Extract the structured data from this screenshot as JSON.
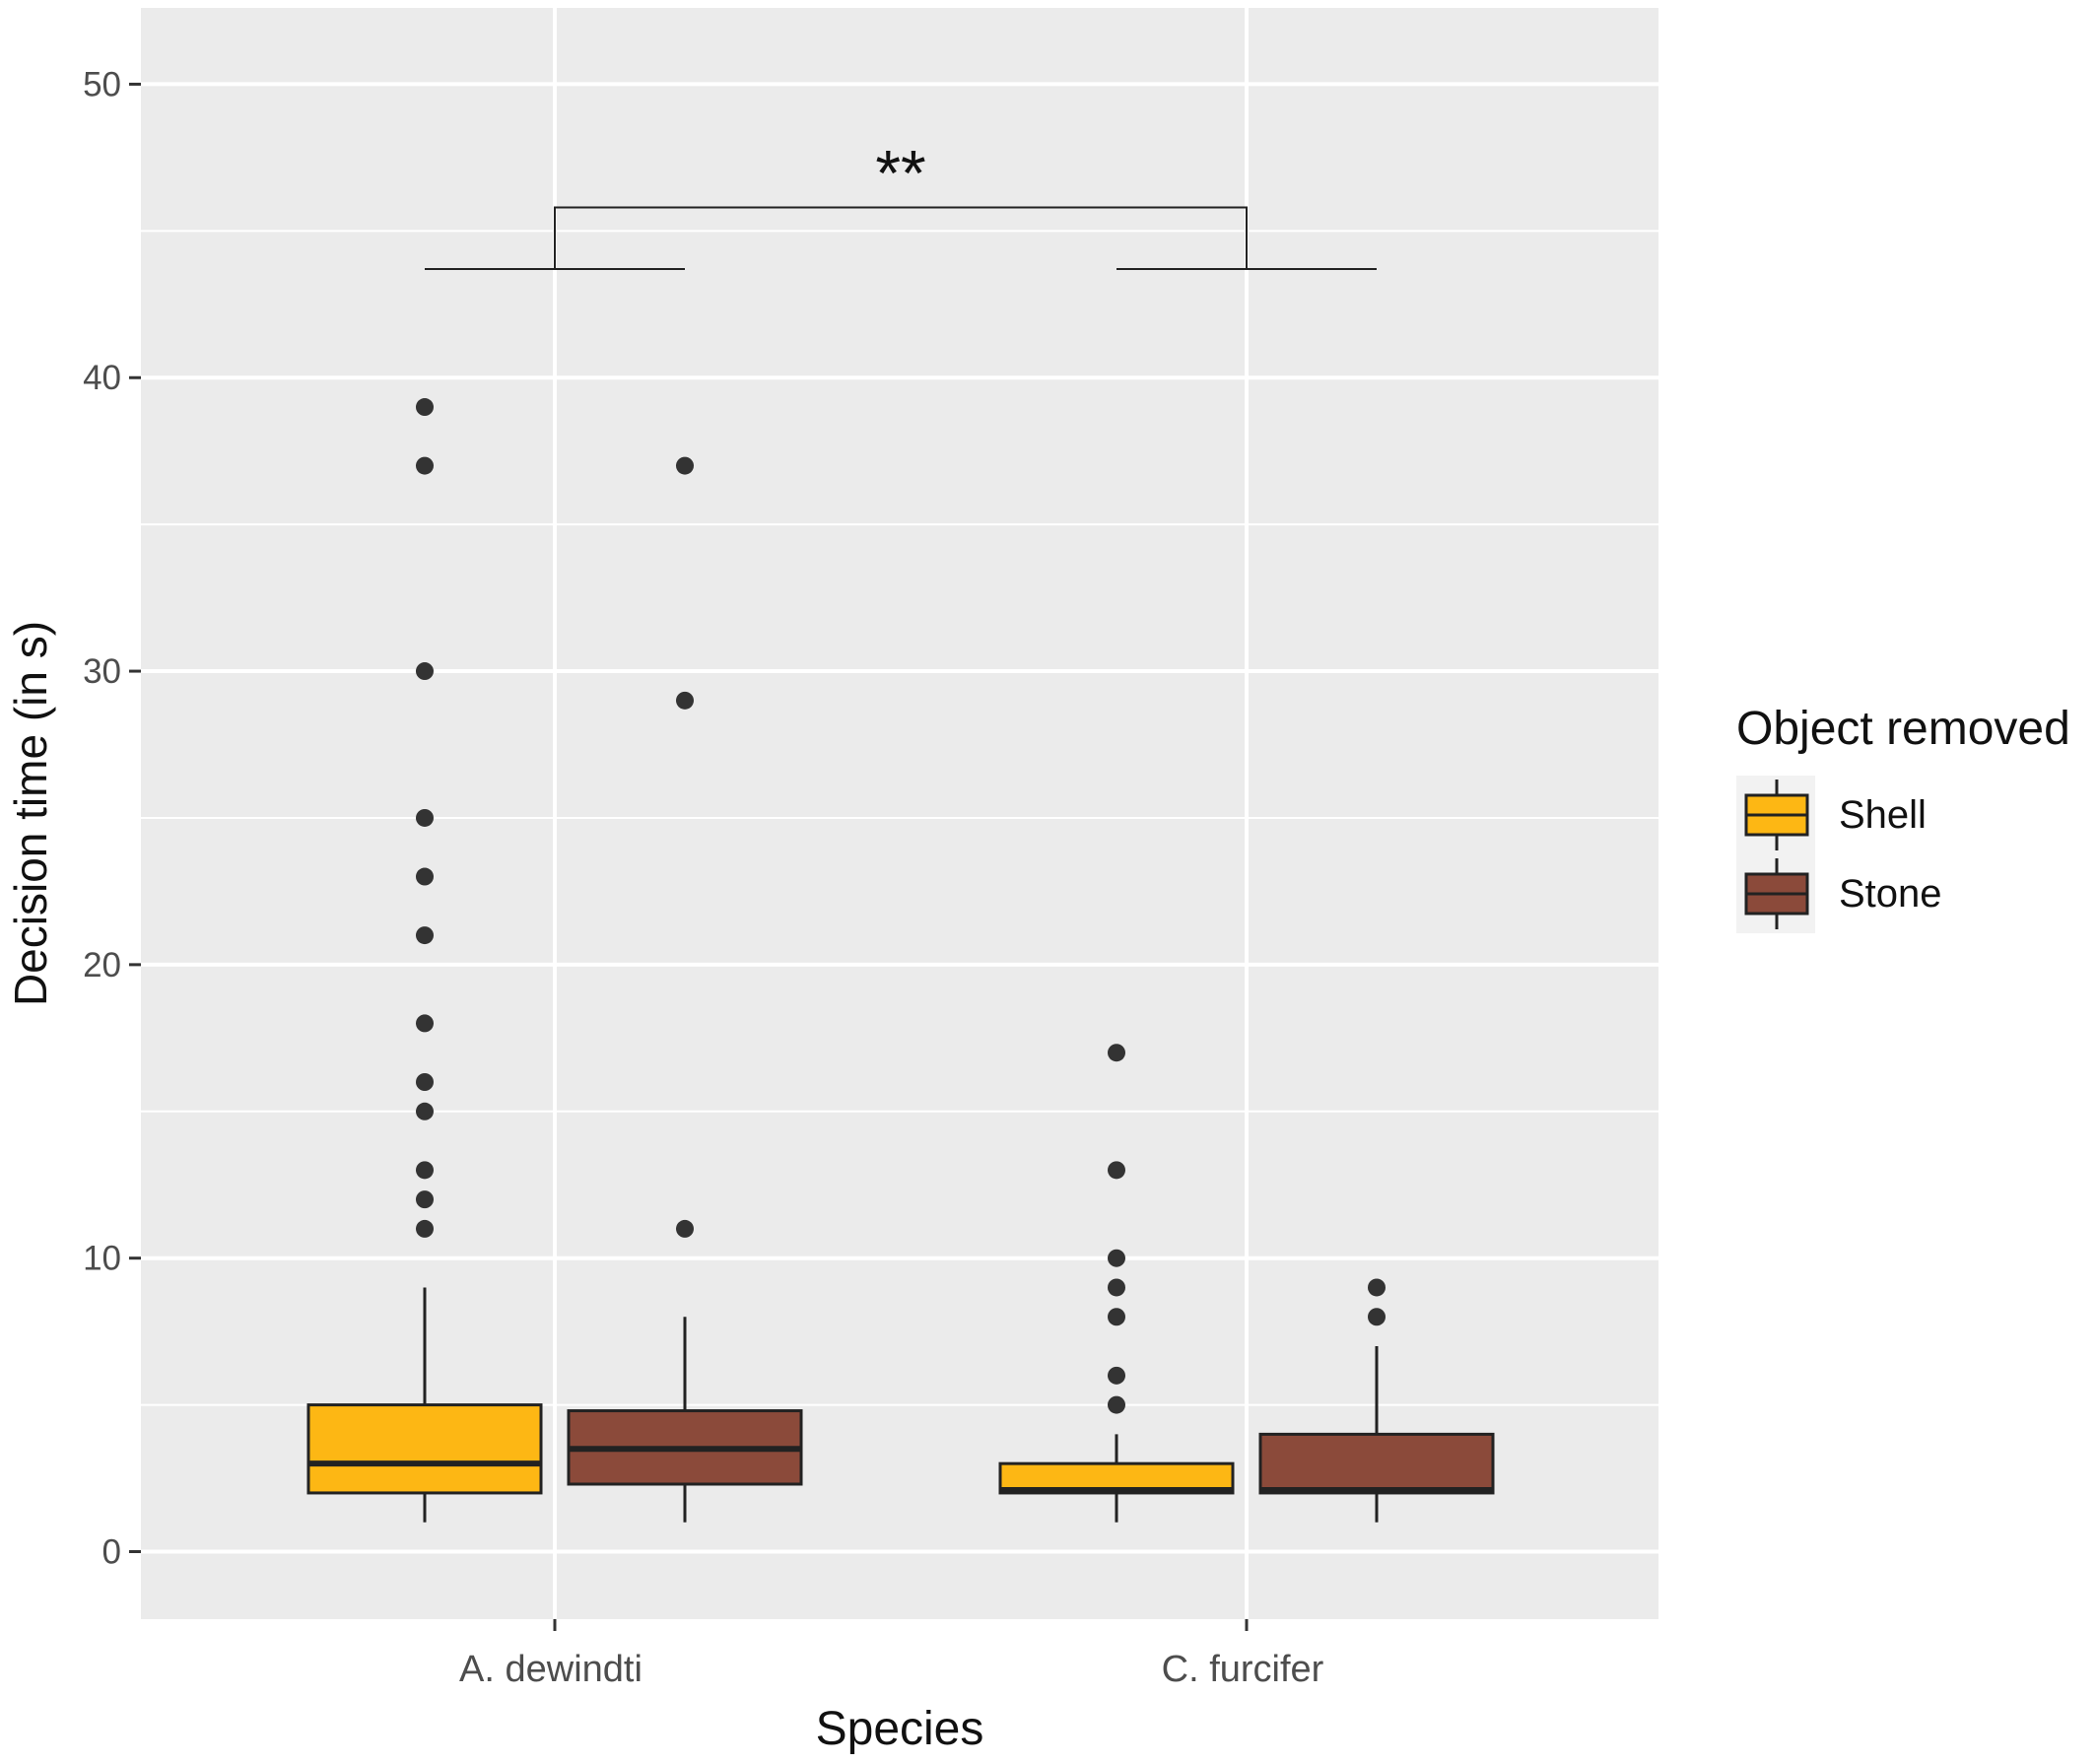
{
  "chart_data": {
    "type": "box",
    "xlabel": "Species",
    "ylabel": "Decision time (in s)",
    "ylim": [
      -2.3,
      52.6
    ],
    "yticks": [
      0,
      10,
      20,
      30,
      40,
      50
    ],
    "categories": [
      "A. dewindti",
      "C. furcifer"
    ],
    "grid": true,
    "legend": {
      "title": "Object removed",
      "position": "right",
      "entries": [
        "Shell",
        "Stone"
      ]
    },
    "series": [
      {
        "name": "Shell",
        "color": "#FDB714",
        "boxes": [
          {
            "category": "A. dewindti",
            "whisker_low": 1,
            "q1": 2,
            "median": 3,
            "q3": 5,
            "whisker_high": 9,
            "outliers": [
              11,
              12,
              13,
              15,
              16,
              18,
              21,
              23,
              25,
              30,
              37,
              39
            ]
          },
          {
            "category": "C. furcifer",
            "whisker_low": 1,
            "q1": 2,
            "median": 2.1,
            "q3": 3,
            "whisker_high": 4,
            "outliers": [
              5,
              6,
              8,
              9,
              10,
              13,
              17
            ]
          }
        ]
      },
      {
        "name": "Stone",
        "color": "#8B4A3A",
        "boxes": [
          {
            "category": "A. dewindti",
            "whisker_low": 1,
            "q1": 2.3,
            "median": 3.5,
            "q3": 4.8,
            "whisker_high": 8,
            "outliers": [
              11,
              29,
              37
            ]
          },
          {
            "category": "C. furcifer",
            "whisker_low": 1,
            "q1": 2,
            "median": 2.1,
            "q3": 4,
            "whisker_high": 7,
            "outliers": [
              8,
              9
            ]
          }
        ]
      }
    ],
    "annotations": [
      {
        "type": "bracket",
        "from": "A. dewindti",
        "to": "C. furcifer",
        "label": "**",
        "bracket_y": 45.8,
        "leg_y": 43.7
      }
    ]
  }
}
